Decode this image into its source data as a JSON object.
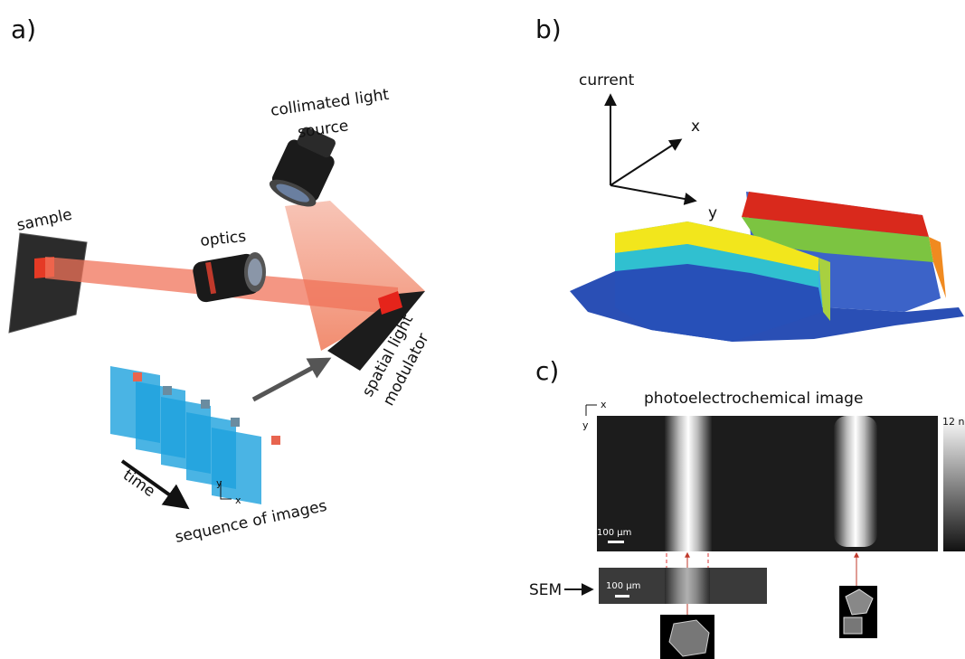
{
  "panel_a": {
    "label": "a)",
    "light_source": [
      "collimated light",
      "source"
    ],
    "sample": "sample",
    "optics": "optics",
    "modulator": [
      "spatial light",
      "modulator"
    ],
    "time": "time",
    "sequence": "sequence of images",
    "axis_y": "y",
    "axis_x": "x"
  },
  "panel_b": {
    "label": "b)",
    "axis_current": "current",
    "axis_x": "x",
    "axis_y": "y"
  },
  "panel_c": {
    "label": "c)",
    "title": "photoelectrochemical image",
    "axis_x": "x",
    "axis_y": "y",
    "colorbar_max": "12 n",
    "scale_bar": "100 µm",
    "sem_label": "SEM",
    "sem_scale_bar": "100 µm"
  }
}
